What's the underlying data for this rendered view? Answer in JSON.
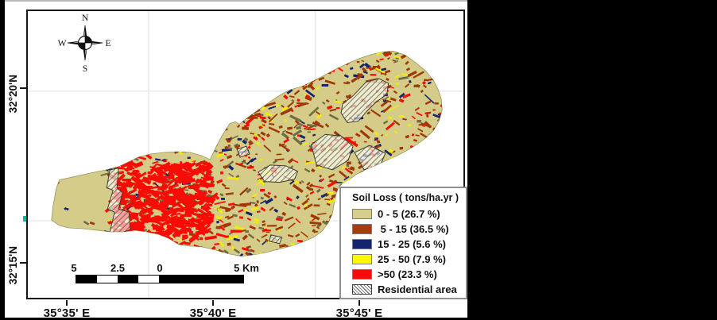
{
  "figure": {
    "x_labels": [
      "35°35' E",
      "35°40' E",
      "35°45' E"
    ],
    "y_labels": [
      "32°20'N",
      "32°15'N"
    ],
    "compass": {
      "n": "N",
      "s": "S",
      "e": "E",
      "w": "W"
    },
    "scale_bar": {
      "labels": [
        "5",
        "2.5",
        "0",
        "5 Km"
      ]
    },
    "legend": {
      "title": "Soil Loss ( tons/ha.yr )",
      "items": [
        {
          "label": "0 - 5 (26.7 %)",
          "swatch": "fill",
          "color": "#d5ce8c"
        },
        {
          "label": " 5 - 15 (36.5 %)",
          "swatch": "fill",
          "color": "#a63c10"
        },
        {
          "label": "15 - 25 (5.6 %)",
          "swatch": "fill",
          "color": "#13266d"
        },
        {
          "label": "25 - 50 (7.9 %)",
          "swatch": "fill",
          "color": "#fdf903"
        },
        {
          "label": ">50 (23.3 %)",
          "swatch": "fill",
          "color": "#f30e0b"
        },
        {
          "label": "Residential area",
          "swatch": "hatch",
          "color": "#5c5c5c"
        }
      ]
    },
    "map": {
      "palette": {
        "base": "#d4cc88",
        "low": "#a03908",
        "mid": "#17246d",
        "high": "#f2ec09",
        "vhigh": "#f90b07",
        "dark": "#6d6d46",
        "graticule": "#e6e6e6",
        "outline": "#97975e"
      }
    }
  }
}
